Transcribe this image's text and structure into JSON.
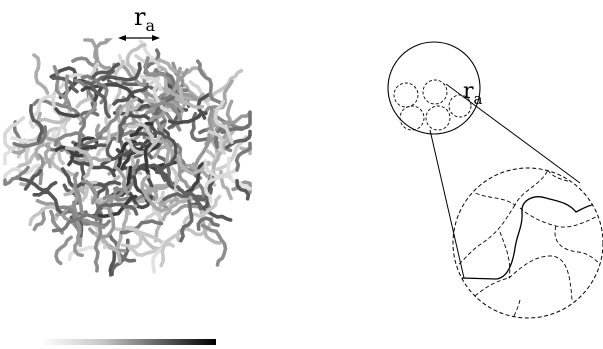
{
  "labels": {
    "radius_main": "r",
    "radius_main_sub": "a",
    "radius_zoom": "r",
    "radius_zoom_sub": "a"
  },
  "colors": {
    "ink": "#000000",
    "background": "#ffffff",
    "colorbar_start": "#ffffff",
    "colorbar_end": "#000000"
  }
}
